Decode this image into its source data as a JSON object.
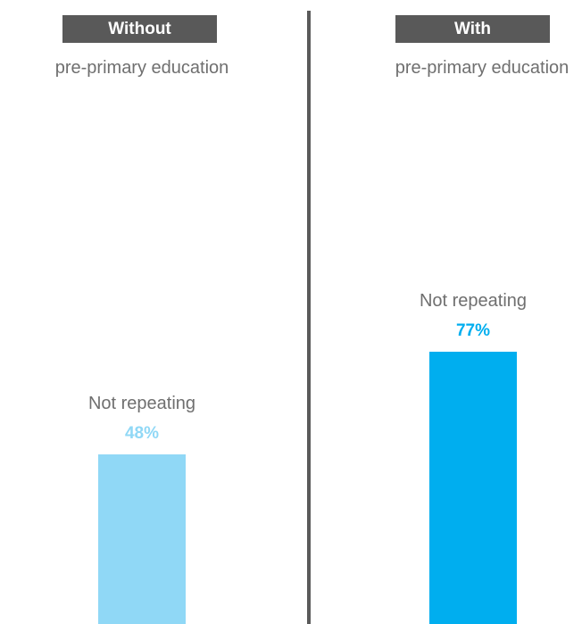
{
  "chart_data": {
    "type": "bar",
    "panels": [
      {
        "header": "Without",
        "subtitle": "pre-primary education",
        "category": "Not repeating",
        "value": 48,
        "value_label": "48%",
        "color": "#90d8f6",
        "value_color": "#90d8f6"
      },
      {
        "header": "With",
        "subtitle": "pre-primary education",
        "category": "Not repeating",
        "value": 77,
        "value_label": "77%",
        "color": "#00aeef",
        "value_color": "#00aeef"
      }
    ],
    "ylim": [
      0,
      100
    ]
  }
}
